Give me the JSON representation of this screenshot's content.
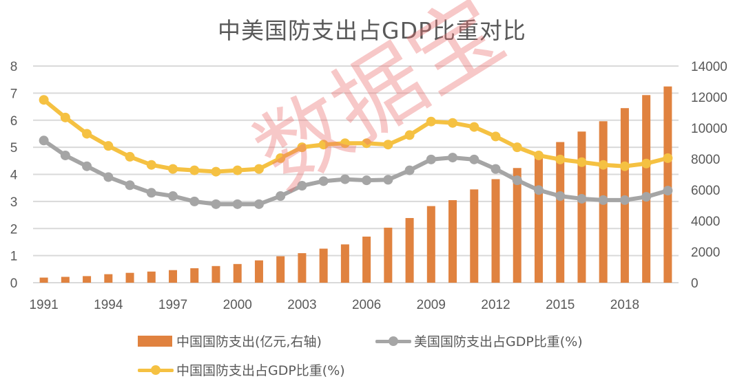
{
  "chart_data": {
    "type": "bar+line",
    "title": "中美国防支出占GDP比重对比",
    "xlabel": "",
    "ylabel_left": "",
    "ylabel_right": "",
    "categories": [
      1991,
      1992,
      1993,
      1994,
      1995,
      1996,
      1997,
      1998,
      1999,
      2000,
      2001,
      2002,
      2003,
      2004,
      2005,
      2006,
      2007,
      2008,
      2009,
      2010,
      2011,
      2012,
      2013,
      2014,
      2015,
      2016,
      2017,
      2018,
      2019,
      2020
    ],
    "x_tick_labels": [
      "1991",
      "1994",
      "1997",
      "2000",
      "2003",
      "2006",
      "2009",
      "2012",
      "2015",
      "2018"
    ],
    "y_left": {
      "range": [
        0,
        8
      ],
      "ticks": [
        "0",
        "1",
        "2",
        "3",
        "4",
        "5",
        "6",
        "7",
        "8"
      ]
    },
    "y_right": {
      "range": [
        0,
        14000
      ],
      "ticks": [
        "0",
        "2000",
        "4000",
        "6000",
        "8000",
        "10000",
        "12000",
        "14000"
      ]
    },
    "grid": true,
    "legend_position": "bottom",
    "series": [
      {
        "name": "中国国防支出(亿元,右轴)",
        "type": "bar",
        "axis": "right",
        "color": "#E0823F",
        "values": [
          330,
          378,
          426,
          550,
          637,
          720,
          813,
          935,
          1076,
          1208,
          1442,
          1708,
          1908,
          2200,
          2475,
          2979,
          3555,
          4179,
          4951,
          5333,
          6028,
          6692,
          7411,
          8290,
          9088,
          9766,
          10432,
          11280,
          12122,
          12680
        ]
      },
      {
        "name": "美国国防支出占GDP比重(%)",
        "type": "line",
        "axis": "left",
        "color": "#A5A5A5",
        "values": [
          5.25,
          4.7,
          4.3,
          3.9,
          3.6,
          3.32,
          3.2,
          3.0,
          2.9,
          2.9,
          2.9,
          3.2,
          3.58,
          3.75,
          3.82,
          3.78,
          3.8,
          4.15,
          4.55,
          4.62,
          4.55,
          4.2,
          3.78,
          3.42,
          3.2,
          3.1,
          3.05,
          3.05,
          3.17,
          3.4
        ]
      },
      {
        "name": "中国国防支出占GDP比重(%)",
        "type": "line",
        "axis": "left",
        "color": "#F5C142",
        "values": [
          6.75,
          6.1,
          5.5,
          5.05,
          4.65,
          4.35,
          4.2,
          4.15,
          4.1,
          4.15,
          4.2,
          4.6,
          5.0,
          5.1,
          5.15,
          5.15,
          5.1,
          5.45,
          5.95,
          5.9,
          5.75,
          5.4,
          5.0,
          4.7,
          4.55,
          4.45,
          4.35,
          4.3,
          4.4,
          4.6
        ]
      }
    ],
    "watermark": "数据宝"
  },
  "legend": {
    "items": [
      {
        "label": "中国国防支出(亿元,右轴)"
      },
      {
        "label": "美国国防支出占GDP比重(%)"
      },
      {
        "label": "中国国防支出占GDP比重(%)"
      }
    ]
  }
}
